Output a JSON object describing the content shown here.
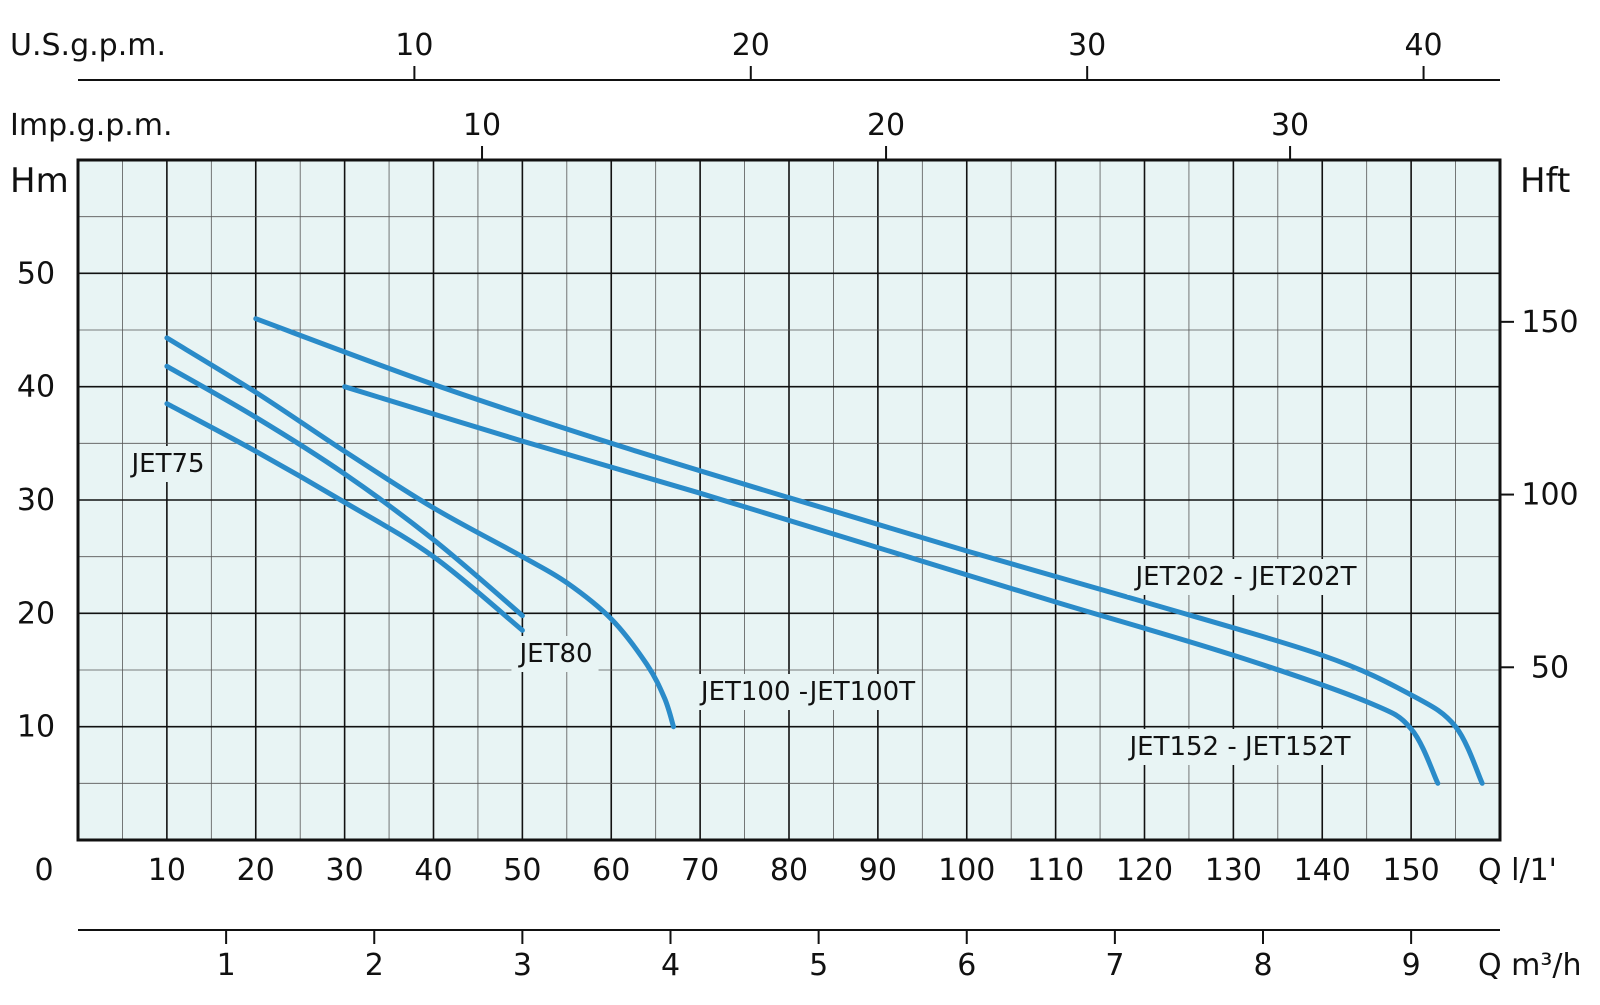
{
  "colors": {
    "plot_bg": "#e8f4f4",
    "grid_major": "#111111",
    "grid_minor": "#555555",
    "curve": "#2a8bc9",
    "axis": "#111111"
  },
  "axes": {
    "usgpm_label": "U.S.g.p.m.",
    "usgpm_ticks": [
      "10",
      "20",
      "30",
      "40"
    ],
    "impgpm_label": "Imp.g.p.m.",
    "impgpm_ticks": [
      "10",
      "20",
      "30"
    ],
    "left_label": "Hm",
    "left_ticks": [
      "50",
      "40",
      "30",
      "20",
      "10"
    ],
    "right_label": "Hft",
    "right_ticks": [
      "150",
      "100",
      "50"
    ],
    "lmin_ticks": [
      "0",
      "10",
      "20",
      "30",
      "40",
      "50",
      "60",
      "70",
      "80",
      "90",
      "100",
      "110",
      "120",
      "130",
      "140",
      "150"
    ],
    "lmin_unit": "Q  l/1'",
    "m3h_ticks": [
      "1",
      "2",
      "3",
      "4",
      "5",
      "6",
      "7",
      "8",
      "9"
    ],
    "m3h_unit": "Q  m³/h"
  },
  "chart_data": {
    "type": "line",
    "title": "",
    "xlabel": "Q l/1'",
    "ylabel": "Hm",
    "xlim": [
      0,
      160
    ],
    "ylim": [
      0,
      60
    ],
    "grid": true,
    "series": [
      {
        "name": "JET75",
        "points": [
          [
            10,
            38.5
          ],
          [
            20,
            34.3
          ],
          [
            30,
            29.8
          ],
          [
            40,
            25.0
          ],
          [
            50,
            18.5
          ]
        ]
      },
      {
        "name": "JET80",
        "points": [
          [
            10,
            41.8
          ],
          [
            20,
            37.3
          ],
          [
            30,
            32.3
          ],
          [
            40,
            26.5
          ],
          [
            50,
            19.8
          ]
        ]
      },
      {
        "name": "JET100 -JET100T",
        "points": [
          [
            10,
            44.3
          ],
          [
            20,
            39.5
          ],
          [
            30,
            34.3
          ],
          [
            40,
            29.3
          ],
          [
            50,
            25.0
          ],
          [
            55,
            22.7
          ],
          [
            60,
            19.5
          ],
          [
            64,
            15.5
          ],
          [
            66,
            12.5
          ],
          [
            67,
            10.0
          ]
        ]
      },
      {
        "name": "JET202 - JET202T",
        "points": [
          [
            20,
            46.0
          ],
          [
            40,
            40.2
          ],
          [
            60,
            35.0
          ],
          [
            80,
            30.2
          ],
          [
            100,
            25.5
          ],
          [
            120,
            21.0
          ],
          [
            140,
            16.3
          ],
          [
            150,
            12.8
          ],
          [
            155,
            10.0
          ],
          [
            158,
            5.0
          ]
        ]
      },
      {
        "name": "JET152 - JET152T",
        "points": [
          [
            30,
            40.0
          ],
          [
            50,
            35.2
          ],
          [
            70,
            30.6
          ],
          [
            90,
            25.8
          ],
          [
            110,
            21.0
          ],
          [
            130,
            16.3
          ],
          [
            145,
            12.2
          ],
          [
            150,
            9.8
          ],
          [
            153,
            5.0
          ]
        ]
      }
    ],
    "secondary_axes": {
      "top_us_gpm_ticks": [
        10,
        20,
        30,
        40
      ],
      "top_imp_gpm_ticks": [
        10,
        20,
        30
      ],
      "right_hft_ticks": [
        50,
        100,
        150
      ],
      "bottom_m3h_ticks": [
        1,
        2,
        3,
        4,
        5,
        6,
        7,
        8,
        9
      ]
    },
    "labels": [
      "JET75",
      "JET80",
      "JET100 -JET100T",
      "JET202 - JET202T",
      "JET152 - JET152T"
    ]
  }
}
